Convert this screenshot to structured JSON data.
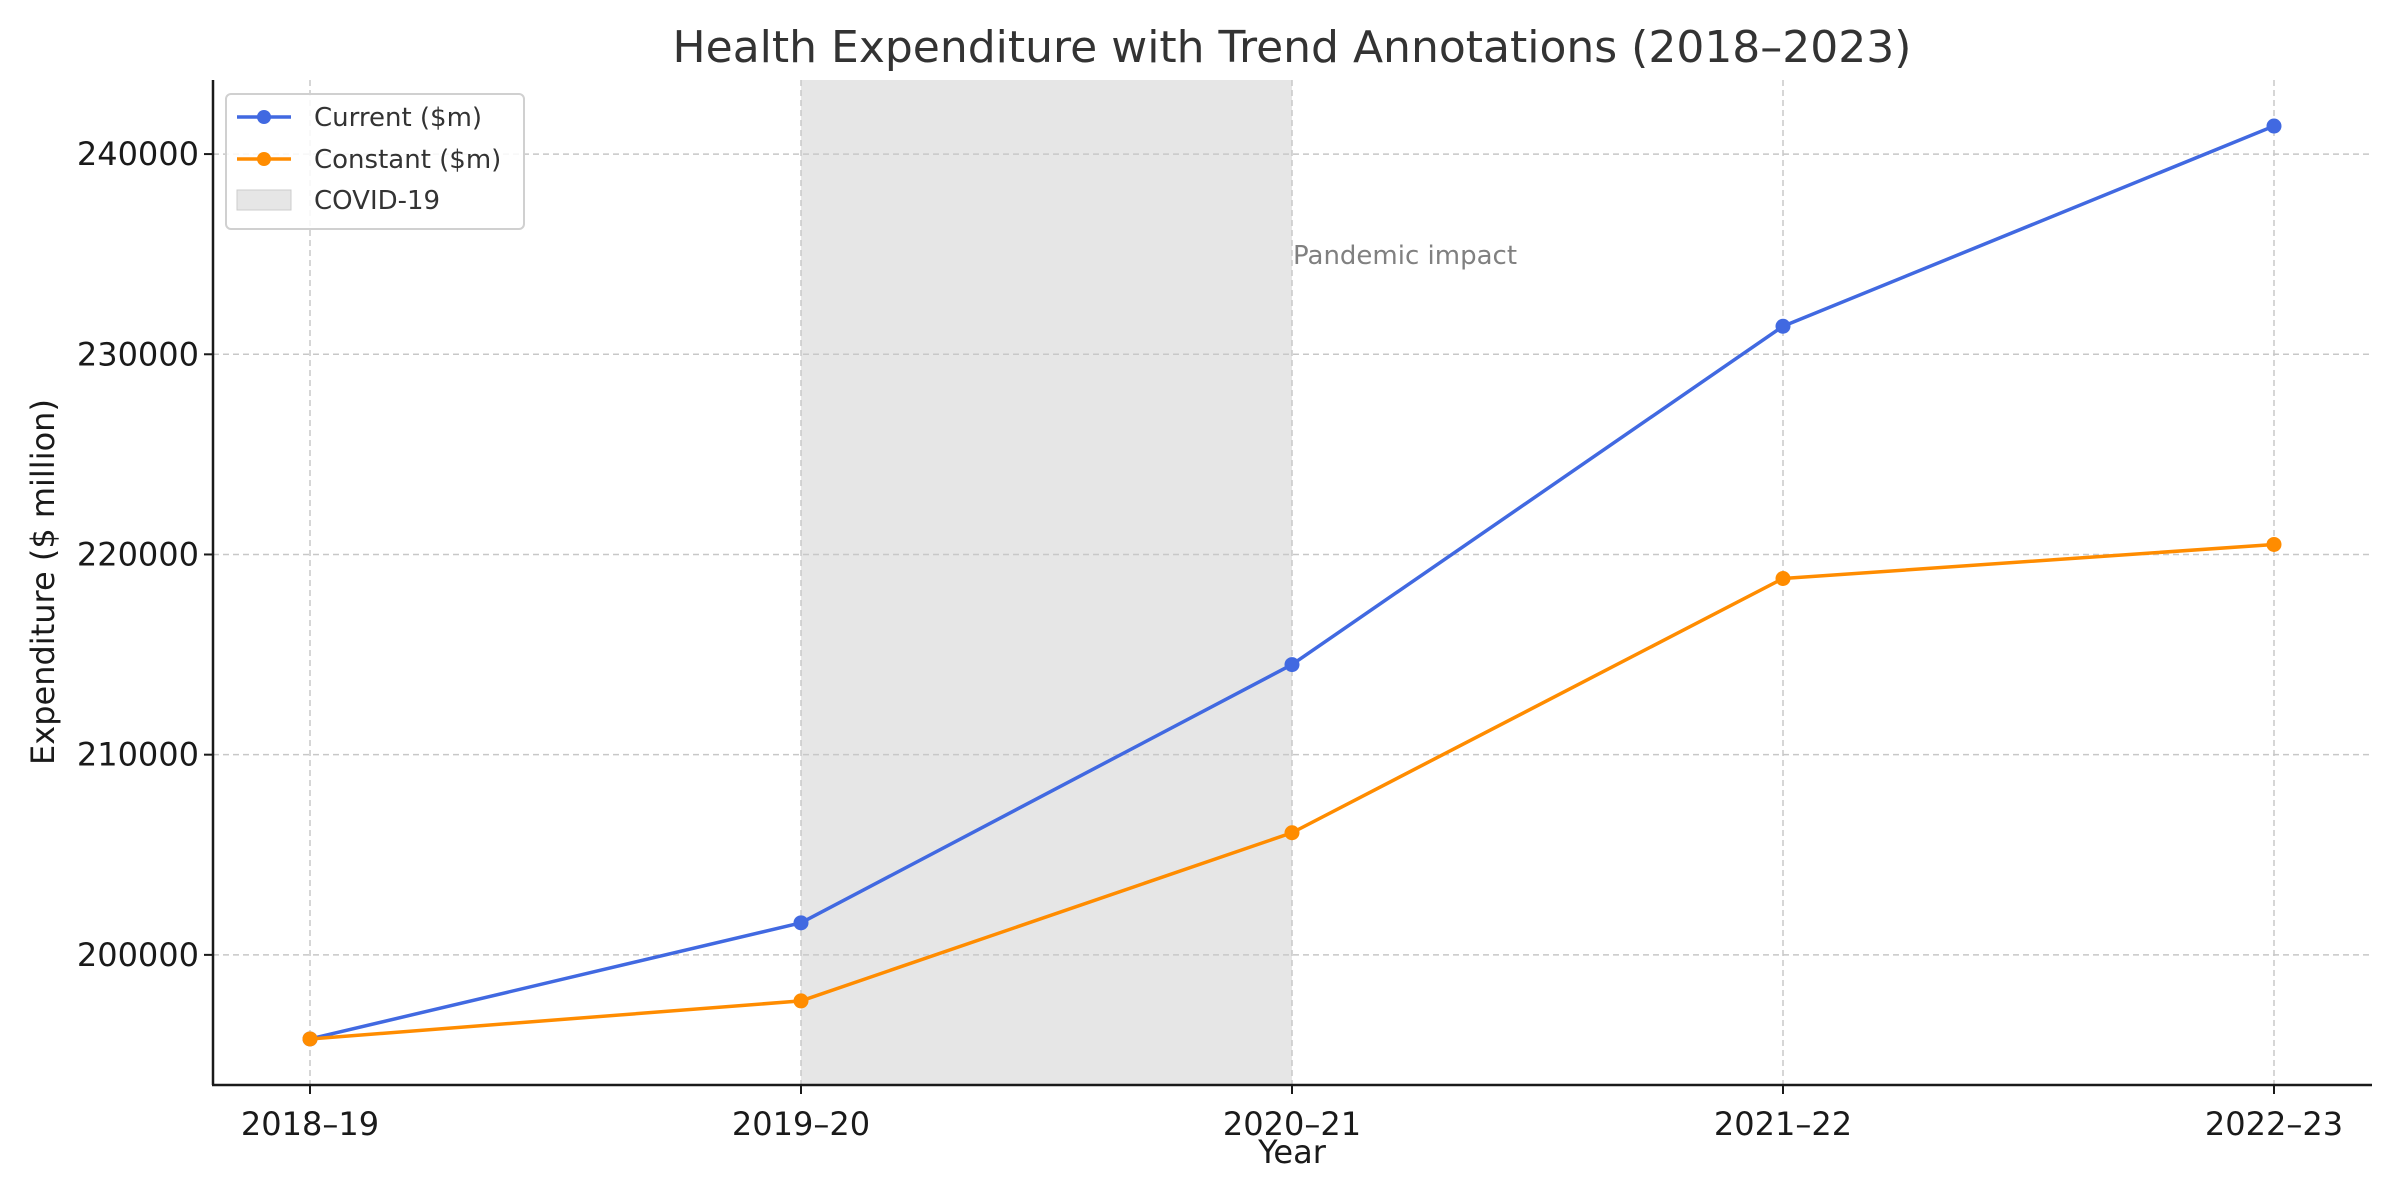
{
  "chart_data": {
    "type": "line",
    "title": "Health Expenditure with Trend Annotations (2018–2023)",
    "xlabel": "Year",
    "ylabel": "Expenditure ($ million)",
    "categories": [
      "2018–19",
      "2019–20",
      "2020–21",
      "2021–22",
      "2022–23"
    ],
    "ylim": [
      193500,
      243700
    ],
    "yticks": [
      200000,
      210000,
      220000,
      230000,
      240000
    ],
    "grid": true,
    "legend_position": "top-left",
    "series": [
      {
        "name": "Current ($m)",
        "color": "#4169e1",
        "values": [
          195800,
          201600,
          214500,
          231400,
          241400
        ]
      },
      {
        "name": "Constant ($m)",
        "color": "#ff8c00",
        "values": [
          195800,
          197700,
          206100,
          218800,
          220500
        ]
      }
    ],
    "shaded_region": {
      "name": "COVID-19",
      "from_category": "2019–20",
      "to_category": "2020–21",
      "color": "#e6e6e6"
    },
    "annotation": {
      "text": "Pandemic impact",
      "category": "2020–21",
      "value": 235000
    }
  }
}
